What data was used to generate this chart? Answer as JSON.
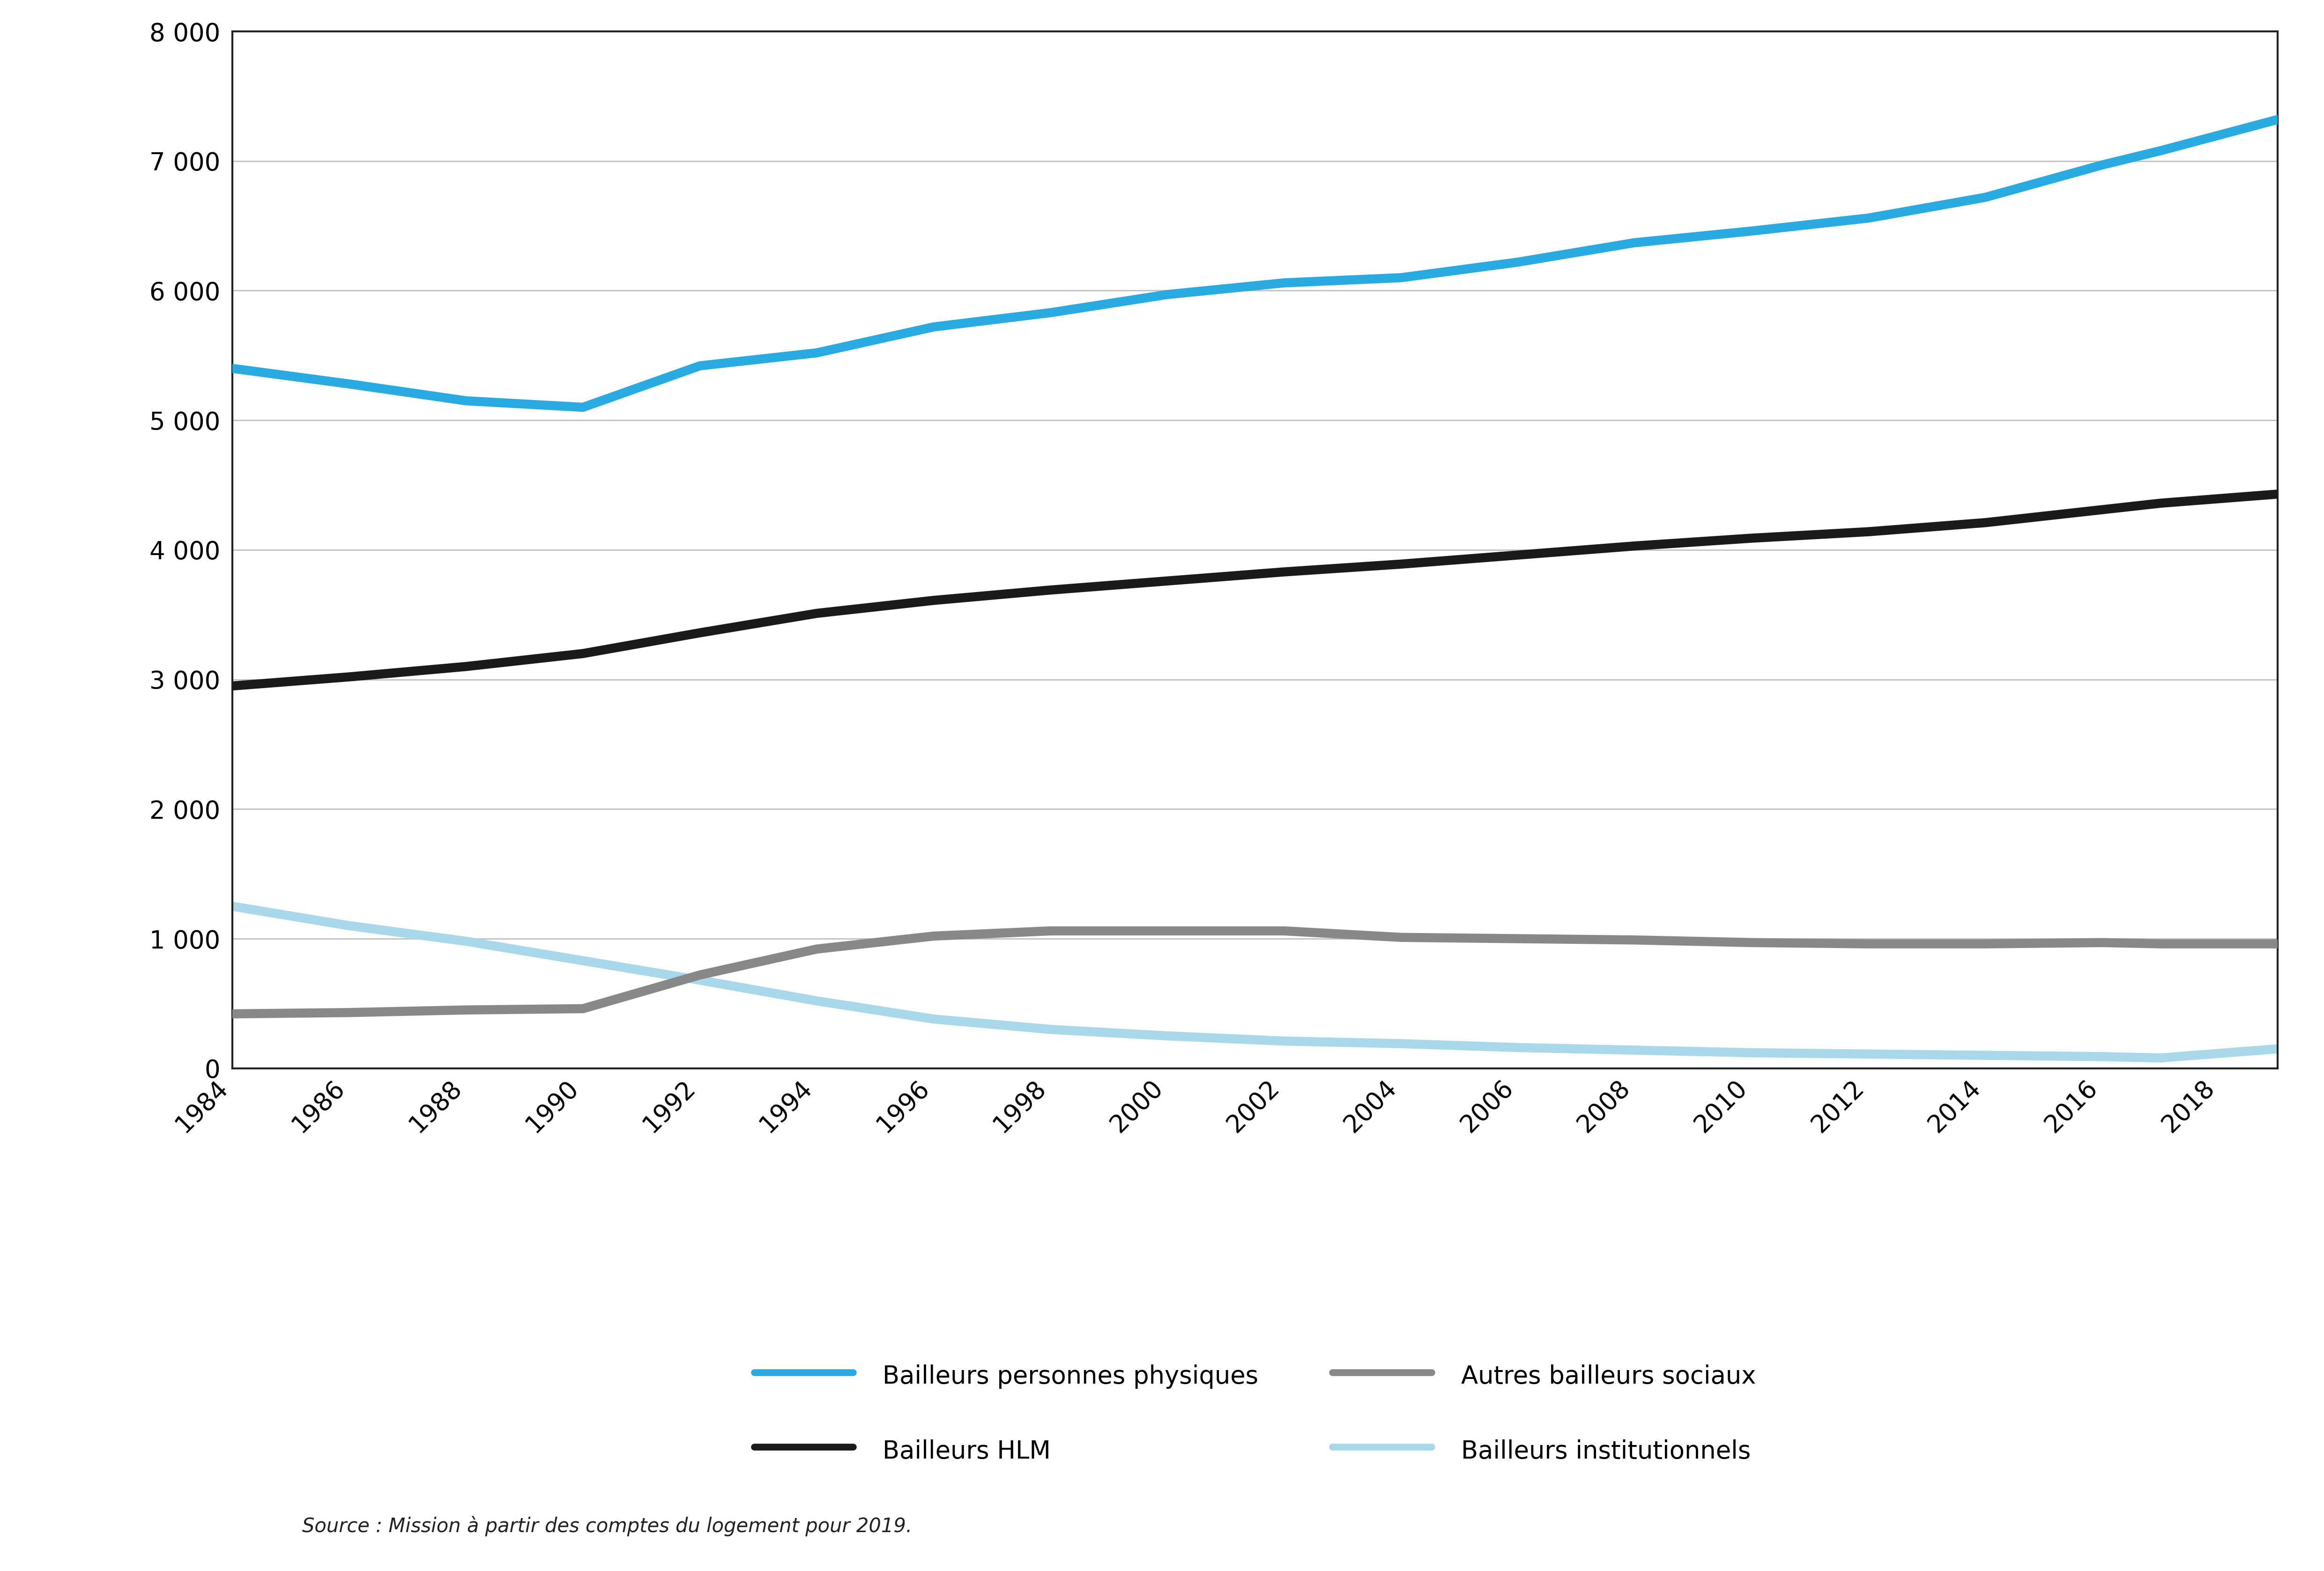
{
  "years": [
    1984,
    1986,
    1988,
    1990,
    1992,
    1994,
    1996,
    1998,
    2000,
    2002,
    2004,
    2006,
    2008,
    2010,
    2012,
    2014,
    2016,
    2017,
    2019
  ],
  "bailleurs_physiques": [
    5400,
    5280,
    5150,
    5100,
    5420,
    5520,
    5720,
    5830,
    5970,
    6060,
    6100,
    6220,
    6370,
    6460,
    6560,
    6720,
    6970,
    7080,
    7320
  ],
  "bailleurs_hlm": [
    2950,
    3020,
    3100,
    3200,
    3360,
    3510,
    3610,
    3690,
    3760,
    3830,
    3890,
    3960,
    4030,
    4090,
    4140,
    4210,
    4310,
    4360,
    4430
  ],
  "autres_bailleurs_sociaux": [
    420,
    430,
    450,
    460,
    720,
    920,
    1020,
    1060,
    1060,
    1060,
    1010,
    1000,
    990,
    970,
    960,
    960,
    970,
    960,
    960
  ],
  "bailleurs_institutionnels": [
    1250,
    1100,
    980,
    830,
    680,
    520,
    380,
    300,
    250,
    210,
    190,
    160,
    140,
    120,
    110,
    100,
    90,
    80,
    150
  ],
  "color_physiques": "#29ABE2",
  "color_hlm": "#1A1A1A",
  "color_autres": "#888888",
  "color_institutionnels": "#A8D8EA",
  "ylim": [
    0,
    8000
  ],
  "yticks": [
    0,
    1000,
    2000,
    3000,
    4000,
    5000,
    6000,
    7000,
    8000
  ],
  "xtick_years": [
    1984,
    1986,
    1988,
    1990,
    1992,
    1994,
    1996,
    1998,
    2000,
    2002,
    2004,
    2006,
    2008,
    2010,
    2012,
    2014,
    2016,
    2018
  ],
  "legend_physiques": "Bailleurs personnes physiques",
  "legend_hlm": "Bailleurs HLM",
  "legend_autres": "Autres bailleurs sociaux",
  "legend_institutionnels": "Bailleurs institutionnels",
  "source_text": "Source : Mission à partir des comptes du logement pour 2019.",
  "linewidth": 14,
  "background_color": "#ffffff",
  "grid_color": "#c0c0c0",
  "tick_fontsize": 38,
  "legend_fontsize": 38,
  "source_fontsize": 30
}
